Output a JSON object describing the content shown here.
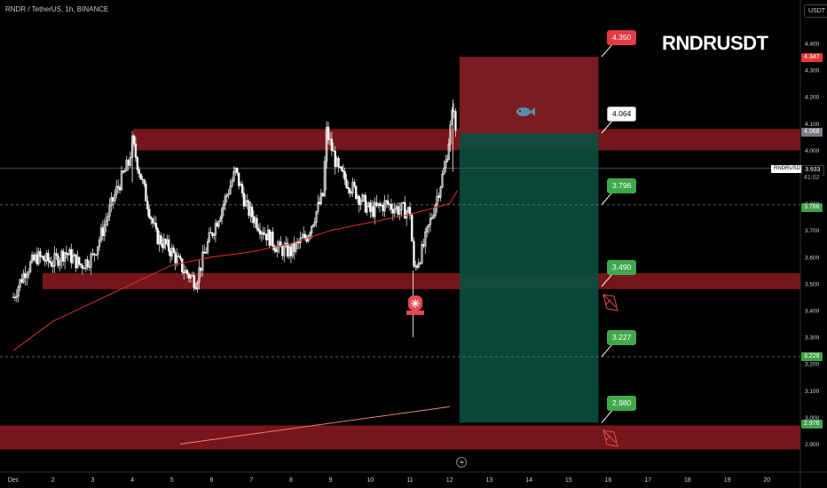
{
  "header": {
    "title": "RNDR / TetherUS, 1h, BINANCE"
  },
  "currency_button": "USDT",
  "symbol_title": "RNDRUSDT",
  "current_price": {
    "symbol": "RNDRUSDT",
    "price": "3.933",
    "countdown": "41:02"
  },
  "price_tags": [
    {
      "value": "4.347",
      "color": "#e53935"
    },
    {
      "value": "4.068",
      "color": "#787b86"
    },
    {
      "value": "3.786",
      "color": "#43a047"
    },
    {
      "value": "3.228",
      "color": "#43a047"
    },
    {
      "value": "2.976",
      "color": "#43a047"
    }
  ],
  "callouts": [
    {
      "label": "4.350",
      "kind": "stop",
      "price": 4.35
    },
    {
      "label": "4.064",
      "kind": "entry",
      "price": 4.064
    },
    {
      "label": "3.796",
      "kind": "target",
      "price": 3.796
    },
    {
      "label": "3.490",
      "kind": "target",
      "price": 3.49
    },
    {
      "label": "3.227",
      "kind": "target",
      "price": 3.227
    },
    {
      "label": "2.980",
      "kind": "target",
      "price": 2.98
    }
  ],
  "icons": [
    "fish-icon",
    "siren-icon",
    "lightning-icon",
    "target-marker-icon"
  ],
  "colors": {
    "background": "#000000",
    "candle": "#ffffff",
    "zone": "#8b1a1f",
    "stop_zone": "#7b1c22",
    "target_zone": "#0b4f3f",
    "ma_short": "#e0302f",
    "ma_long": "#f08080"
  },
  "chart_data": {
    "type": "line",
    "title": "",
    "xlabel": "",
    "ylabel": "",
    "x_tick_labels": [
      "Dec",
      "2",
      "3",
      "4",
      "5",
      "6",
      "7",
      "8",
      "9",
      "10",
      "11",
      "12",
      "13",
      "14",
      "15",
      "16",
      "17",
      "18",
      "19",
      "20"
    ],
    "y_tick_labels": [
      "2.900",
      "3.000",
      "3.100",
      "3.200",
      "3.300",
      "3.400",
      "3.500",
      "3.600",
      "3.700",
      "3.800",
      "3.900",
      "4.000",
      "4.100",
      "4.200",
      "4.300",
      "4.400"
    ],
    "ylim": [
      2.88,
      4.44
    ],
    "x_unit": "day of December",
    "series": [
      {
        "kind": "price",
        "x": [
          1.0,
          1.3,
          1.6,
          2.0,
          2.3,
          2.7,
          3.0,
          3.3,
          3.6,
          3.9,
          4.0,
          4.3,
          4.6,
          5.0,
          5.3,
          5.6,
          5.9,
          6.3,
          6.6,
          6.9,
          7.3,
          7.7,
          8.0,
          8.4,
          8.8,
          8.9,
          9.2,
          9.6,
          10.0,
          10.4,
          10.7,
          11.0,
          11.1,
          11.3,
          11.6,
          11.9,
          12.1,
          12.2
        ],
        "y": [
          3.45,
          3.55,
          3.6,
          3.58,
          3.62,
          3.57,
          3.6,
          3.72,
          3.85,
          3.95,
          4.03,
          3.85,
          3.68,
          3.62,
          3.55,
          3.51,
          3.65,
          3.8,
          3.92,
          3.78,
          3.7,
          3.63,
          3.62,
          3.68,
          3.83,
          4.07,
          3.92,
          3.85,
          3.77,
          3.8,
          3.78,
          3.77,
          3.55,
          3.62,
          3.78,
          3.95,
          4.17,
          3.94
        ]
      },
      {
        "kind": "moving-average-short",
        "x": [
          1.0,
          2.0,
          3.0,
          4.0,
          5.0,
          6.0,
          7.0,
          8.0,
          9.0,
          10.0,
          11.0,
          12.0,
          12.2
        ],
        "y": [
          3.25,
          3.36,
          3.43,
          3.5,
          3.57,
          3.6,
          3.62,
          3.65,
          3.7,
          3.73,
          3.76,
          3.8,
          3.85
        ]
      },
      {
        "kind": "moving-average-long",
        "x": [
          5.2,
          12.0
        ],
        "y": [
          2.9,
          3.04
        ]
      }
    ],
    "zones": [
      {
        "kind": "resistance",
        "from": 4.0,
        "to": 4.08
      },
      {
        "kind": "support",
        "from": 3.48,
        "to": 3.54
      },
      {
        "kind": "support",
        "from": 2.88,
        "to": 2.97
      }
    ],
    "position": {
      "entry": 4.064,
      "stop": 4.35,
      "target": 2.98,
      "x_start": 12.25,
      "x_end": 15.75
    },
    "levels": [
      3.796,
      3.227,
      3.933
    ]
  }
}
